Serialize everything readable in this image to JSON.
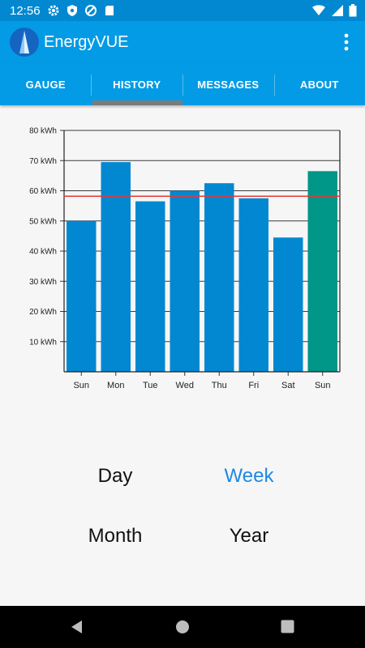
{
  "status": {
    "time": "12:56",
    "icons_left": [
      "settings-icon",
      "shield-icon",
      "do-not-disturb-icon",
      "sd-card-icon"
    ],
    "icons_right": [
      "wifi-icon",
      "signal-icon",
      "battery-icon"
    ]
  },
  "app": {
    "title": "EnergyVUE",
    "primary_color": "#039be5",
    "status_color": "#0288d1"
  },
  "tabs": [
    {
      "label": "GAUGE",
      "selected": false
    },
    {
      "label": "HISTORY",
      "selected": true
    },
    {
      "label": "MESSAGES",
      "selected": false
    },
    {
      "label": "ABOUT",
      "selected": false
    }
  ],
  "chart_data": {
    "type": "bar",
    "categories": [
      "Sun",
      "Mon",
      "Tue",
      "Wed",
      "Thu",
      "Fri",
      "Sat",
      "Sun"
    ],
    "values": [
      50,
      69.5,
      56.5,
      60,
      62.5,
      57.5,
      44.5,
      66.5
    ],
    "bar_colors": [
      "#0288d1",
      "#0288d1",
      "#0288d1",
      "#0288d1",
      "#0288d1",
      "#0288d1",
      "#0288d1",
      "#009688"
    ],
    "y_ticks": [
      "10 kWh",
      "20 kWh",
      "30 kWh",
      "40 kWh",
      "50 kWh",
      "60 kWh",
      "70 kWh",
      "80 kWh"
    ],
    "ylim": [
      0,
      80
    ],
    "average_line": 58.2,
    "average_line_color": "#e53935",
    "grid": true
  },
  "ranges": [
    {
      "label": "Day",
      "active": false
    },
    {
      "label": "Week",
      "active": true
    },
    {
      "label": "Month",
      "active": false
    },
    {
      "label": "Year",
      "active": false
    }
  ],
  "nav": [
    "back-icon",
    "home-icon",
    "recents-icon"
  ]
}
